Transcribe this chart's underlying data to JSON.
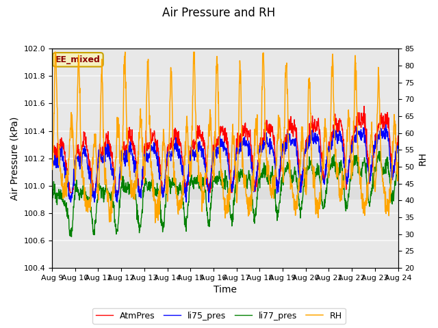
{
  "title": "Air Pressure and RH",
  "xlabel": "Time",
  "ylabel_left": "Air Pressure (kPa)",
  "ylabel_right": "RH",
  "annotation": "EE_mixed",
  "ylim_left": [
    100.4,
    102.0
  ],
  "ylim_right": [
    20,
    85
  ],
  "yticks_left": [
    100.4,
    100.6,
    100.8,
    101.0,
    101.2,
    101.4,
    101.6,
    101.8,
    102.0
  ],
  "yticks_right": [
    20,
    25,
    30,
    35,
    40,
    45,
    50,
    55,
    60,
    65,
    70,
    75,
    80,
    85
  ],
  "xtick_labels": [
    "Aug 9",
    "Aug 10",
    "Aug 11",
    "Aug 12",
    "Aug 13",
    "Aug 14",
    "Aug 15",
    "Aug 16",
    "Aug 17",
    "Aug 18",
    "Aug 19",
    "Aug 20",
    "Aug 21",
    "Aug 22",
    "Aug 23",
    "Aug 24"
  ],
  "legend_labels": [
    "AtmPres",
    "li75_pres",
    "li77_pres",
    "RH"
  ],
  "line_colors": [
    "red",
    "blue",
    "green",
    "orange"
  ],
  "plot_bg_color": "#e8e8e8",
  "grid_color": "#f5f5f5",
  "title_fontsize": 12,
  "label_fontsize": 10,
  "tick_fontsize": 8,
  "annotation_facecolor": "#f5f0c0",
  "annotation_edgecolor": "#c8a000",
  "annotation_textcolor": "#8B0000"
}
